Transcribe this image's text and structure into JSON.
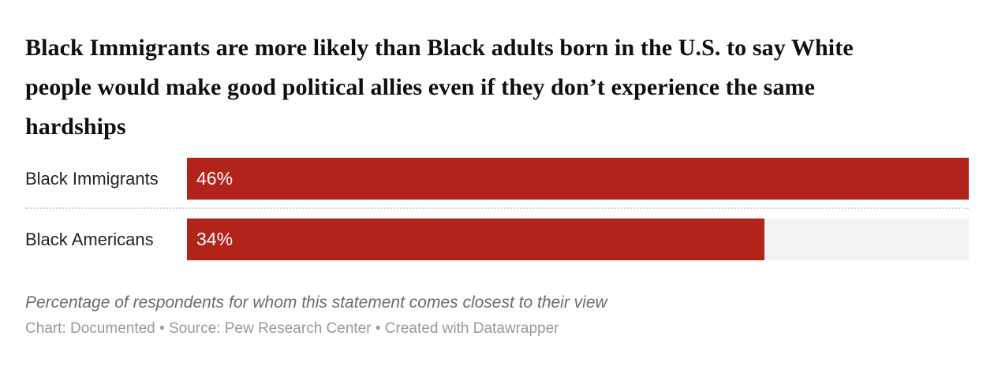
{
  "title": {
    "lines": [
      "Black Immigrants are more likely than Black adults born in the U.S. to say White",
      "people would make good political allies even if they don’t experience the same",
      "hardships"
    ]
  },
  "rows": [
    {
      "label": "Black Immigrants",
      "value_label": "46%",
      "bar_width_pct": 100
    },
    {
      "label": "Black Americans",
      "value_label": "34%",
      "bar_width_pct": 73.9
    }
  ],
  "note": {
    "text": "Percentage of respondents for whom this statement comes closest to their view"
  },
  "footer": {
    "text": "Chart: Documented • Source: Pew Research Center • Created with Datawrapper"
  },
  "colors": {
    "bar": "#b2231a",
    "track": "#f2f2f2",
    "divider": "#cfcfcf",
    "title_text": "#0f0f0f",
    "label_text": "#222222",
    "value_text": "#ffffff",
    "note_text": "#6b6b6b",
    "footer_text": "#9a9a9a"
  },
  "chart_data": {
    "type": "bar",
    "orientation": "horizontal",
    "title": "Black Immigrants are more likely than Black adults born in the U.S. to say White people would make good political allies even if they don’t experience the same hardships",
    "categories": [
      "Black Immigrants",
      "Black Americans"
    ],
    "values": [
      46,
      34
    ],
    "value_labels": [
      "46%",
      "34%"
    ],
    "unit": "percent",
    "xlim": [
      0,
      46
    ],
    "grid": false,
    "legend": false,
    "axis_ticks": false,
    "note": "Percentage of respondents for whom this statement comes closest to their view",
    "source_line": "Chart: Documented • Source: Pew Research Center • Created with Datawrapper"
  }
}
